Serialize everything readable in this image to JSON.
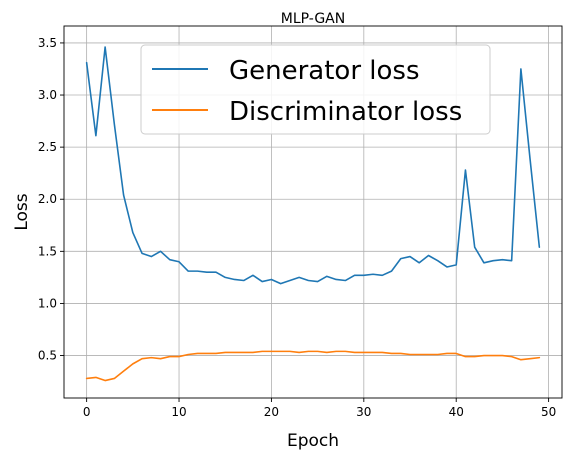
{
  "chart_data": {
    "type": "line",
    "title": "MLP-GAN",
    "xlabel": "Epoch",
    "ylabel": "Loss",
    "xlim": [
      -2.45,
      51.45
    ],
    "ylim": [
      0.0925,
      3.6625
    ],
    "grid": true,
    "legend_position": "top-center",
    "xticks": [
      0,
      10,
      20,
      30,
      40,
      50
    ],
    "yticks": [
      0.5,
      1.0,
      1.5,
      2.0,
      2.5,
      3.0,
      3.5
    ],
    "xtick_labels": [
      "0",
      "10",
      "20",
      "30",
      "40",
      "50"
    ],
    "ytick_labels": [
      "0.5",
      "1.0",
      "1.5",
      "2.0",
      "2.5",
      "3.0",
      "3.5"
    ],
    "x": [
      0,
      1,
      2,
      3,
      4,
      5,
      6,
      7,
      8,
      9,
      10,
      11,
      12,
      13,
      14,
      15,
      16,
      17,
      18,
      19,
      20,
      21,
      22,
      23,
      24,
      25,
      26,
      27,
      28,
      29,
      30,
      31,
      32,
      33,
      34,
      35,
      36,
      37,
      38,
      39,
      40,
      41,
      42,
      43,
      44,
      45,
      46,
      47,
      48,
      49
    ],
    "series": [
      {
        "name": "Generator loss",
        "color": "#1f77b4",
        "values": [
          3.31,
          2.61,
          3.46,
          2.72,
          2.04,
          1.68,
          1.48,
          1.45,
          1.5,
          1.42,
          1.4,
          1.31,
          1.31,
          1.3,
          1.3,
          1.25,
          1.23,
          1.22,
          1.27,
          1.21,
          1.23,
          1.19,
          1.22,
          1.25,
          1.22,
          1.21,
          1.26,
          1.23,
          1.22,
          1.27,
          1.27,
          1.28,
          1.27,
          1.31,
          1.43,
          1.45,
          1.39,
          1.46,
          1.41,
          1.35,
          1.37,
          2.28,
          1.54,
          1.39,
          1.41,
          1.42,
          1.41,
          3.25,
          2.38,
          1.54
        ]
      },
      {
        "name": "Discriminator loss",
        "color": "#ff7f0e",
        "values": [
          0.28,
          0.29,
          0.26,
          0.28,
          0.35,
          0.42,
          0.47,
          0.48,
          0.47,
          0.49,
          0.49,
          0.51,
          0.52,
          0.52,
          0.52,
          0.53,
          0.53,
          0.53,
          0.53,
          0.54,
          0.54,
          0.54,
          0.54,
          0.53,
          0.54,
          0.54,
          0.53,
          0.54,
          0.54,
          0.53,
          0.53,
          0.53,
          0.53,
          0.52,
          0.52,
          0.51,
          0.51,
          0.51,
          0.51,
          0.52,
          0.52,
          0.49,
          0.49,
          0.5,
          0.5,
          0.5,
          0.49,
          0.46,
          0.47,
          0.48
        ]
      }
    ]
  }
}
